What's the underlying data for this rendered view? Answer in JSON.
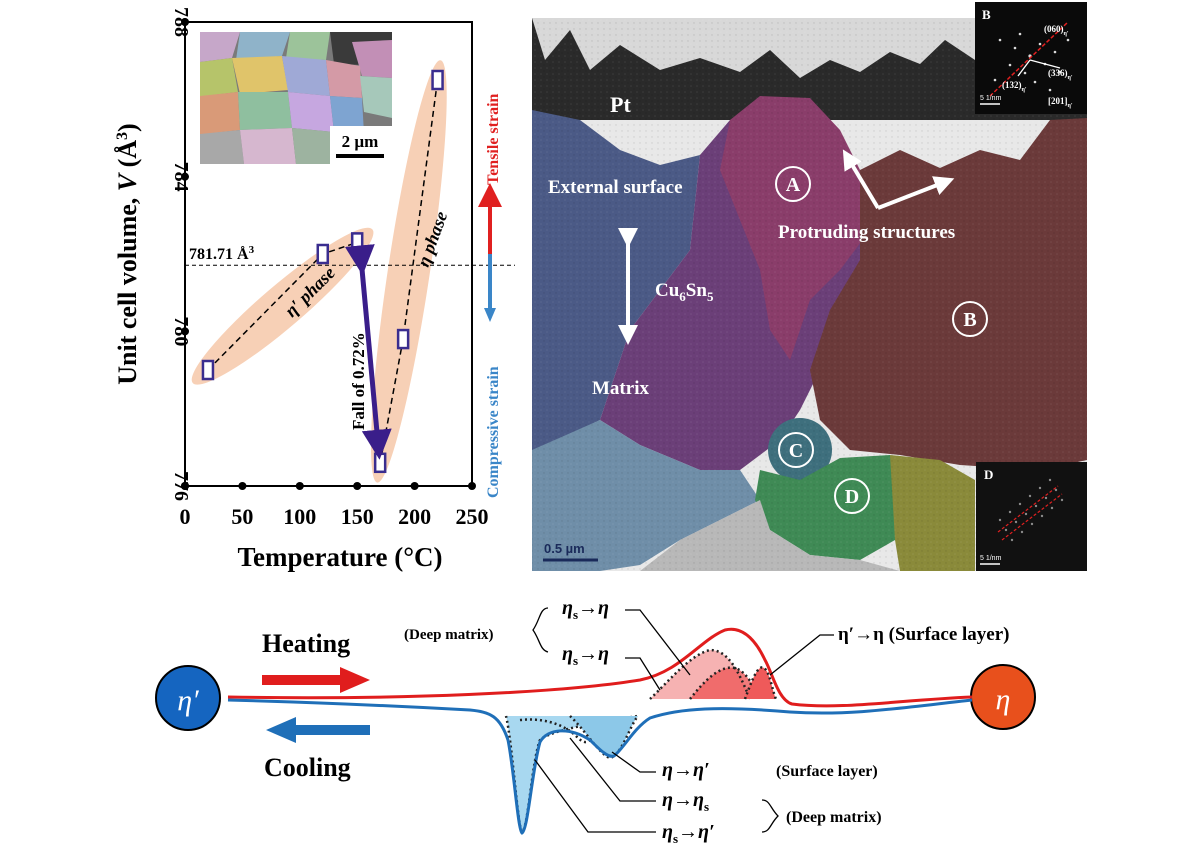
{
  "chart_data": {
    "type": "scatter",
    "xlabel": "Temperature (°C)",
    "ylabel_main": "Unit cell volume, ",
    "ylabel_var": "V",
    "ylabel_unit": " (Å",
    "ylabel_sup": "3",
    "ylabel_close": ")",
    "xlim": [
      0,
      250
    ],
    "ylim": [
      776,
      788
    ],
    "xticks": [
      "0",
      "50",
      "100",
      "150",
      "200",
      "250"
    ],
    "yticks": [
      "776",
      "780",
      "784",
      "788"
    ],
    "ref_value": 781.71,
    "ref_label": "781.71 Å",
    "ref_label_sup": "3",
    "series": [
      {
        "name": "η′ phase",
        "x": [
          20,
          120,
          150
        ],
        "y": [
          779.0,
          782.0,
          782.3
        ]
      },
      {
        "name": "η phase",
        "x": [
          170,
          190,
          220
        ],
        "y": [
          776.6,
          779.8,
          786.5
        ]
      }
    ],
    "annotations": {
      "fall": "Fall of 0.72%",
      "tensile": "Tensile strain",
      "compressive": "Compressive strain",
      "inset_scale": "2 µm"
    }
  },
  "colors": {
    "axis": "#000000",
    "marker": "#3a2d8f",
    "ellipse": "#f7d0b6",
    "tensile": "#e02020",
    "compressive": "#3a86c8",
    "fall_arrow": "#3a1e8a",
    "heating": "#e01d1d",
    "cooling": "#1f6fb8",
    "eta_prime_circle": "#1565c0",
    "eta_circle": "#e8501c"
  },
  "micrograph": {
    "pt": "Pt",
    "external_surface": "External surface",
    "cu6sn5_base": "Cu",
    "cu6sn5_sub1": "6",
    "cu6sn5_mid": "Sn",
    "cu6sn5_sub2": "5",
    "matrix": "Matrix",
    "protruding": "Protruding structures",
    "labels": [
      "A",
      "B",
      "C",
      "D"
    ],
    "scale": "0.5 µm",
    "inset_b": "B",
    "inset_b_060": "(060)",
    "inset_b_336": "(336)",
    "inset_b_132": "(132)",
    "inset_b_201": "[201]",
    "inset_b_sub": "η′",
    "inset_b_scale": "5 1/nm",
    "inset_d": "D",
    "inset_d_scale": "5 1/nm"
  },
  "schematic": {
    "heating": "Heating",
    "cooling": "Cooling",
    "eta_prime": "η′",
    "eta": "η",
    "deep_matrix_top": "(Deep matrix)",
    "surface_layer_top": "η′→η (Surface layer)",
    "eta_s_eta_1": "η",
    "eta_s_eta_1_sub": "s",
    "eta_s_eta_1_rest": "→η",
    "eta_s_eta_2": "η",
    "eta_s_eta_2_sub": "s",
    "eta_s_eta_2_rest": "→η",
    "eta_eta_prime": "η→η′",
    "surface_layer_bottom": "(Surface layer)",
    "eta_eta_s": "η→η",
    "eta_eta_s_sub": "s",
    "eta_s_eta_prime": "η",
    "eta_s_eta_prime_sub": "s",
    "eta_s_eta_prime_rest": "→η′",
    "deep_matrix_bottom": "(Deep matrix)"
  }
}
